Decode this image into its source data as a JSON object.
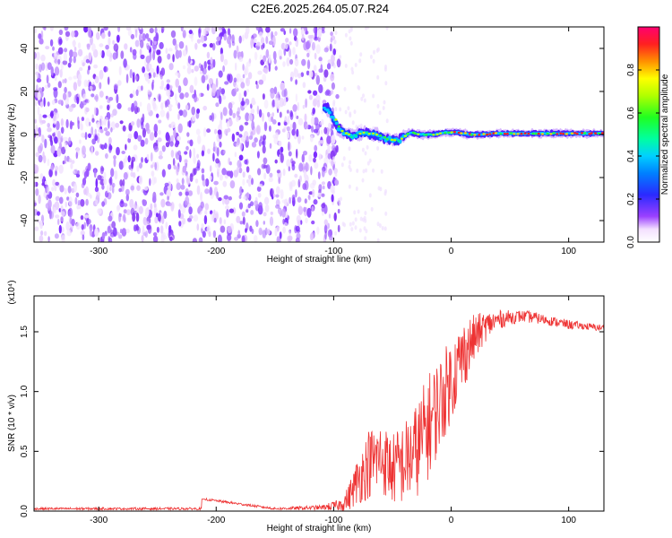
{
  "title": "C2E6.2025.264.05.07.R24",
  "chart_data": [
    {
      "type": "heatmap",
      "xlabel": "Height of straight line (km)",
      "ylabel": "Frequency (Hz)",
      "xlim": [
        -355,
        130
      ],
      "ylim": [
        -50,
        50
      ],
      "x_ticks": [
        -300,
        -200,
        -100,
        0,
        100
      ],
      "x_tick_labels": [
        "-300",
        "-200",
        "-100",
        "0",
        "100"
      ],
      "y_ticks": [
        -40,
        -20,
        0,
        20,
        40
      ],
      "y_tick_labels": [
        "-40",
        "-20",
        "0",
        "20",
        "40"
      ],
      "noise_region_end_km": -100,
      "signal_track": {
        "x": [
          -105,
          -95,
          -85,
          -75,
          -65,
          -55,
          -45,
          -35,
          -25,
          -15,
          -5,
          5,
          15,
          25,
          40,
          60,
          80,
          100,
          130
        ],
        "freq": [
          12,
          2,
          -1,
          1,
          0,
          -2,
          -3,
          1,
          0,
          0,
          1,
          1,
          0,
          0,
          0.5,
          0.5,
          0.5,
          0.5,
          0.5
        ]
      },
      "colorbar": {
        "label": "Normalized spectral amplitude",
        "range": [
          0,
          1
        ],
        "ticks": [
          0.0,
          0.2,
          0.4,
          0.6,
          0.8
        ],
        "tick_labels": [
          "0.0",
          "0.2",
          "0.4",
          "0.6",
          "0.8"
        ]
      }
    },
    {
      "type": "line",
      "xlabel": "Height of straight line (km)",
      "ylabel": "SNR (10 * v/v)",
      "y_multiplier": "(x10⁴)",
      "xlim": [
        -355,
        130
      ],
      "ylim": [
        0,
        1.8
      ],
      "x_ticks": [
        -300,
        -200,
        -100,
        0,
        100
      ],
      "x_tick_labels": [
        "-300",
        "-200",
        "-100",
        "0",
        "100"
      ],
      "y_ticks": [
        0.0,
        0.5,
        1.0,
        1.5
      ],
      "y_tick_labels": [
        "0.0",
        "0.5",
        "1.0",
        "1.5"
      ],
      "series": [
        {
          "name": "SNR",
          "color": "#ee3333",
          "x": [
            -355,
            -300,
            -250,
            -212,
            -210,
            -150,
            -110,
            -95,
            -88,
            -80,
            -70,
            -60,
            -50,
            -40,
            -30,
            -20,
            -10,
            0,
            10,
            20,
            30,
            40,
            50,
            60,
            70,
            80,
            90,
            100,
            110,
            120,
            130
          ],
          "values": [
            0.02,
            0.02,
            0.02,
            0.02,
            0.1,
            0.02,
            0.03,
            0.05,
            0.1,
            0.25,
            0.4,
            0.45,
            0.35,
            0.4,
            0.5,
            0.7,
            0.9,
            1.1,
            1.3,
            1.45,
            1.55,
            1.6,
            1.62,
            1.63,
            1.62,
            1.6,
            1.58,
            1.56,
            1.55,
            1.54,
            1.53
          ],
          "noise_amplitude": [
            0.01,
            0.01,
            0.01,
            0.01,
            0.01,
            0.01,
            0.02,
            0.05,
            0.1,
            0.2,
            0.3,
            0.3,
            0.3,
            0.35,
            0.4,
            0.45,
            0.4,
            0.35,
            0.3,
            0.2,
            0.12,
            0.08,
            0.06,
            0.05,
            0.05,
            0.04,
            0.04,
            0.04,
            0.03,
            0.03,
            0.03
          ]
        }
      ]
    }
  ]
}
